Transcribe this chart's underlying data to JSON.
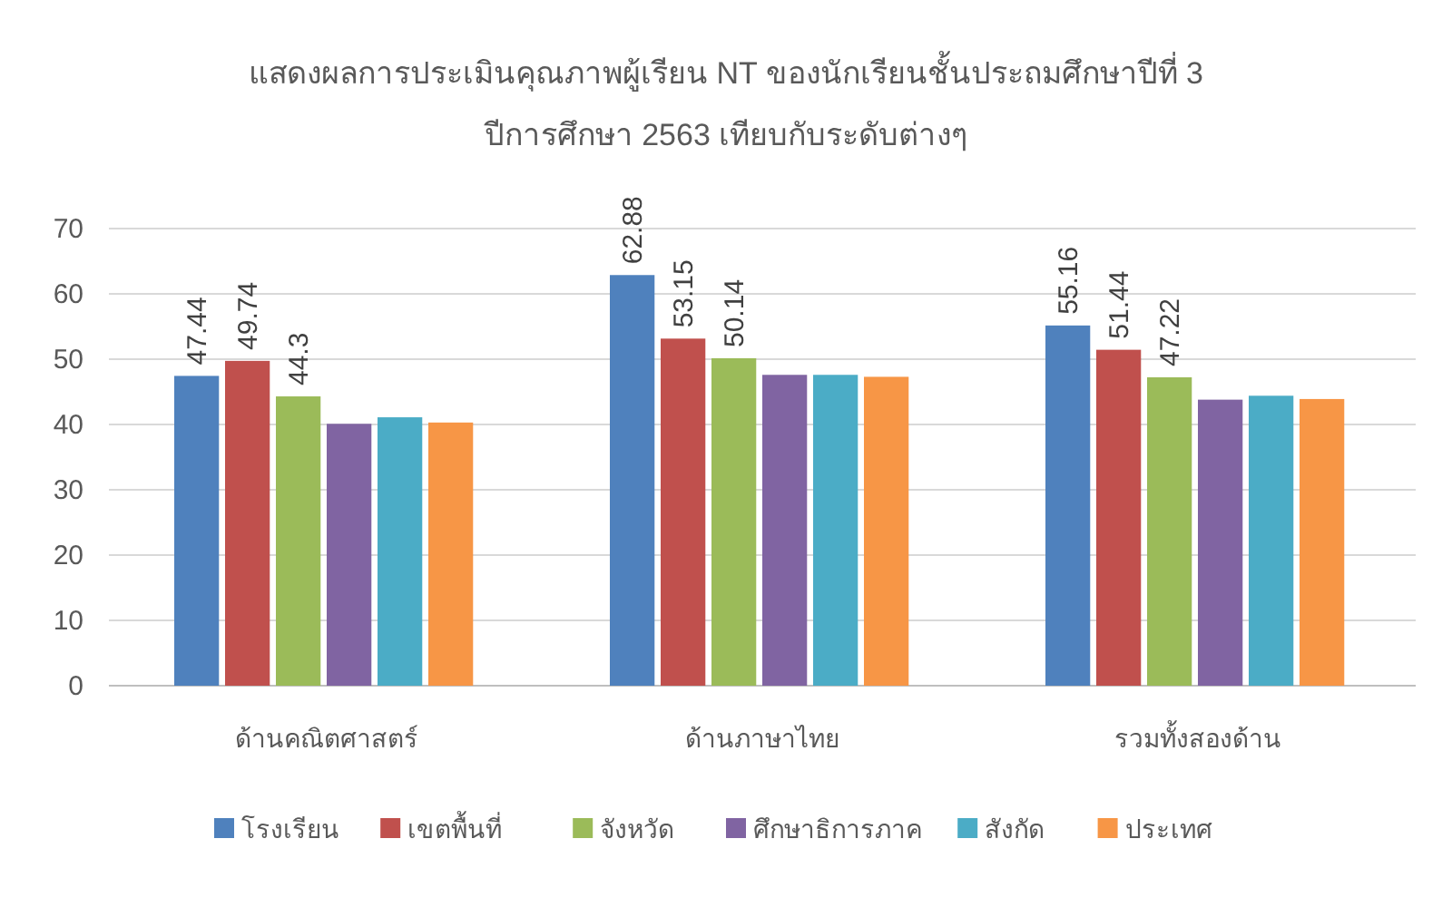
{
  "chart_data": {
    "type": "bar",
    "title": "แสดงผลการประเมินคุณภาพผู้เรียน NT ของนักเรียนชั้นประถมศึกษาปีที่ 3",
    "subtitle": "ปีการศึกษา 2563 เทียบกับระดับต่างๆ",
    "categories": [
      "ด้านคณิตศาสตร์",
      "ด้านภาษาไทย",
      "รวมทั้งสองด้าน"
    ],
    "series": [
      {
        "name": "โรงเรียน",
        "color": "#4f81bd",
        "values": [
          47.44,
          62.88,
          55.16
        ],
        "value_labels": [
          "47.44",
          "62.88",
          "55.16"
        ]
      },
      {
        "name": "เขตพื้นที่",
        "color": "#c0504d",
        "values": [
          49.74,
          53.15,
          51.44
        ],
        "value_labels": [
          "49.74",
          "53.15",
          "51.44"
        ]
      },
      {
        "name": "จังหวัด",
        "color": "#9bbb59",
        "values": [
          44.3,
          50.14,
          47.22
        ],
        "value_labels": [
          "44.3",
          "50.14",
          "47.22"
        ]
      },
      {
        "name": "ศึกษาธิการภาค",
        "color": "#8064a2",
        "values": [
          40.1,
          47.6,
          43.8
        ]
      },
      {
        "name": "สังกัด",
        "color": "#4bacc6",
        "values": [
          41.1,
          47.6,
          44.4
        ]
      },
      {
        "name": "ประเทศ",
        "color": "#f79646",
        "values": [
          40.3,
          47.3,
          43.9
        ]
      }
    ],
    "ylim": [
      0,
      70
    ],
    "yticks": [
      0,
      10,
      20,
      30,
      40,
      50,
      60,
      70
    ],
    "grid": "y",
    "legend": "bottom"
  }
}
